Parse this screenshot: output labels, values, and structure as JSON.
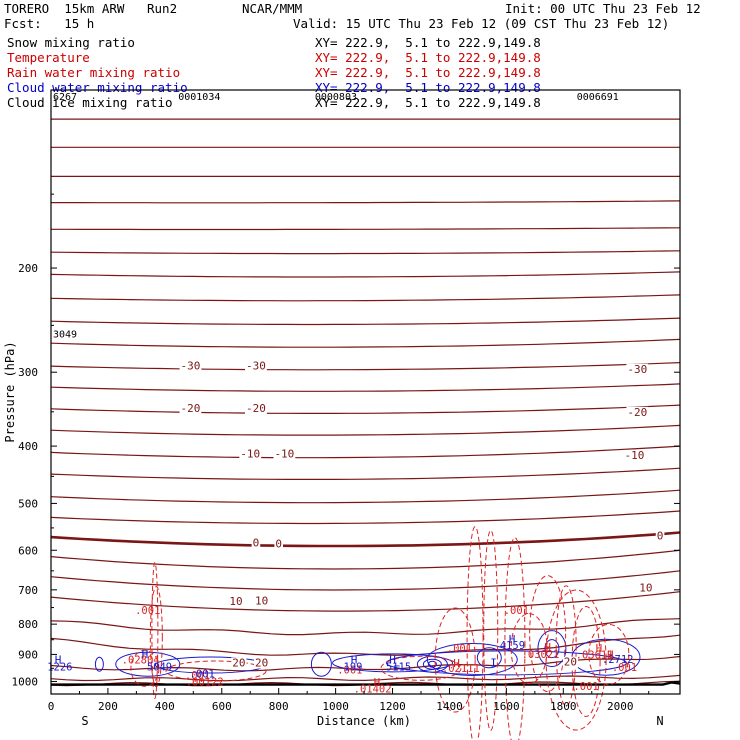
{
  "header": {
    "model": "TORERO  15km ARW   Run2",
    "center": "NCAR/MMM",
    "init": "Init: 00 UTC Thu 23 Feb 12",
    "fcst": "Fcst:   15 h",
    "valid": "Valid: 15 UTC Thu 23 Feb 12 (09 CST Thu 23 Feb 12)"
  },
  "fields": [
    {
      "name": "Snow mixing ratio",
      "xy": "XY= 222.9,  5.1 to 222.9,149.8",
      "color": "#000000"
    },
    {
      "name": "Temperature",
      "xy": "XY= 222.9,  5.1 to 222.9,149.8",
      "color": "#cc0000"
    },
    {
      "name": "Rain water mixing ratio",
      "xy": "XY= 222.9,  5.1 to 222.9,149.8",
      "color": "#cc0000"
    },
    {
      "name": "Cloud water mixing ratio",
      "xy": "XY= 222.9,  5.1 to 222.9,149.8",
      "color": "#0000cc"
    },
    {
      "name": "Cloud ice mixing ratio",
      "xy": "XY= 222.9,  5.1 to 222.9,149.8",
      "color": "#000000"
    }
  ],
  "colors": {
    "temperature": "#7a1616",
    "freezing": "#7a1616",
    "rain": "#dd2222",
    "cloud_water": "#1a1acc",
    "ground": "#000000"
  },
  "chart_data": {
    "type": "cross-section",
    "xlabel": "Distance (km)",
    "ylabel": "Pressure (hPa)",
    "xlim": [
      0,
      2210
    ],
    "ylim": [
      1050,
      100
    ],
    "y_log": true,
    "x_ticks": [
      0,
      200,
      400,
      600,
      800,
      1000,
      1200,
      1400,
      1600,
      1800,
      2000
    ],
    "y_ticks": [
      200,
      300,
      400,
      500,
      600,
      700,
      800,
      900,
      1000
    ],
    "end_labels": {
      "left": "S",
      "right": "N"
    },
    "temperature_lines": [
      {
        "p_left": 112,
        "p_mid": 112,
        "p_right": 112,
        "label": ""
      },
      {
        "p_left": 125,
        "p_mid": 125,
        "p_right": 125,
        "label": ""
      },
      {
        "p_left": 140,
        "p_mid": 140,
        "p_right": 140,
        "label": ""
      },
      {
        "p_left": 155,
        "p_mid": 155,
        "p_right": 154,
        "label": ""
      },
      {
        "p_left": 172,
        "p_mid": 172,
        "p_right": 171,
        "label": ""
      },
      {
        "p_left": 188,
        "p_mid": 189,
        "p_right": 187,
        "label": ""
      },
      {
        "p_left": 205,
        "p_mid": 207,
        "p_right": 203,
        "label": ""
      },
      {
        "p_left": 225,
        "p_mid": 227,
        "p_right": 222,
        "label": ""
      },
      {
        "p_left": 246,
        "p_mid": 249,
        "p_right": 243,
        "label": ""
      },
      {
        "p_left": 268,
        "p_mid": 272,
        "p_right": 264,
        "label": ""
      },
      {
        "p_left": 293,
        "p_mid": 297,
        "p_right": 289,
        "label": "-30"
      },
      {
        "p_left": 318,
        "p_mid": 323,
        "p_right": 314,
        "label": ""
      },
      {
        "p_left": 346,
        "p_mid": 352,
        "p_right": 341,
        "label": "-20"
      },
      {
        "p_left": 376,
        "p_mid": 383,
        "p_right": 369,
        "label": ""
      },
      {
        "p_left": 410,
        "p_mid": 418,
        "p_right": 400,
        "label": "-10"
      },
      {
        "p_left": 446,
        "p_mid": 455,
        "p_right": 436,
        "label": ""
      },
      {
        "p_left": 487,
        "p_mid": 498,
        "p_right": 475,
        "label": ""
      },
      {
        "p_left": 528,
        "p_mid": 540,
        "p_right": 515,
        "label": ""
      },
      {
        "p_left": 570,
        "p_mid": 590,
        "p_right": 560,
        "label": "0",
        "freezing": true
      },
      {
        "p_left": 615,
        "p_mid": 645,
        "p_right": 600,
        "label": ""
      },
      {
        "p_left": 665,
        "p_mid": 700,
        "p_right": 650,
        "label": "10"
      },
      {
        "p_left": 720,
        "p_mid": 760,
        "p_right": 705,
        "label": "10"
      },
      {
        "p_left": 790,
        "p_mid": 830,
        "p_right": 780,
        "label": ""
      },
      {
        "p_left": 850,
        "p_mid": 900,
        "p_right": 830,
        "label": "20"
      },
      {
        "p_left": 945,
        "p_mid": 950,
        "p_right": 905,
        "label": "20"
      },
      {
        "p_left": 990,
        "p_mid": 990,
        "p_right": 980,
        "label": ""
      },
      {
        "p_left": 1010,
        "p_mid": 1010,
        "p_right": 1005,
        "label": ""
      }
    ],
    "temperature_labels": [
      {
        "x": 490,
        "p": 292,
        "text": "-30"
      },
      {
        "x": 720,
        "p": 292,
        "text": "-30"
      },
      {
        "x": 2060,
        "p": 296,
        "text": "-30"
      },
      {
        "x": 490,
        "p": 345,
        "text": "-20"
      },
      {
        "x": 720,
        "p": 345,
        "text": "-20"
      },
      {
        "x": 2060,
        "p": 350,
        "text": "-20"
      },
      {
        "x": 700,
        "p": 412,
        "text": "-10"
      },
      {
        "x": 820,
        "p": 412,
        "text": "-10"
      },
      {
        "x": 2050,
        "p": 414,
        "text": "-10"
      },
      {
        "x": 720,
        "p": 582,
        "text": "0"
      },
      {
        "x": 800,
        "p": 584,
        "text": "0"
      },
      {
        "x": 2140,
        "p": 567,
        "text": "0"
      },
      {
        "x": 650,
        "p": 731,
        "text": "10"
      },
      {
        "x": 740,
        "p": 730,
        "text": "10"
      },
      {
        "x": 2090,
        "p": 694,
        "text": "10"
      },
      {
        "x": 660,
        "p": 929,
        "text": "20"
      },
      {
        "x": 740,
        "p": 929,
        "text": "20"
      },
      {
        "x": 1825,
        "p": 926,
        "text": "20"
      }
    ],
    "top_labels": [
      {
        "x": 0,
        "text": "6267"
      },
      {
        "x": 440,
        "text": "0001034"
      },
      {
        "x": 920,
        "text": "0000803"
      },
      {
        "x": 1840,
        "text": "0006691"
      }
    ],
    "snow_label": {
      "x": 0,
      "p": 258,
      "text": "3049"
    },
    "rain_labels": [
      {
        "x": 340,
        "p": 757,
        "text": ".001"
      },
      {
        "x": 315,
        "p": 918,
        "text": ".02804"
      },
      {
        "x": 515,
        "p": 975,
        "text": ".001"
      },
      {
        "x": 540,
        "p": 1000,
        "text": ".00122"
      },
      {
        "x": 1050,
        "p": 955,
        "text": ".001"
      },
      {
        "x": 1130,
        "p": 1027,
        "text": ".01402"
      },
      {
        "x": 1435,
        "p": 878,
        "text": ".001"
      },
      {
        "x": 1440,
        "p": 948,
        "text": ".02111"
      },
      {
        "x": 1635,
        "p": 757,
        "text": ".001"
      },
      {
        "x": 1720,
        "p": 899,
        "text": ".03021"
      },
      {
        "x": 1910,
        "p": 900,
        "text": ".03611"
      },
      {
        "x": 2015,
        "p": 946,
        "text": ".001"
      },
      {
        "x": 1880,
        "p": 1017,
        "text": ".001"
      }
    ],
    "cloud_labels": [
      {
        "x": 10,
        "p": 943,
        "text": "1226"
      },
      {
        "x": 360,
        "p": 944,
        "text": "5049"
      },
      {
        "x": 510,
        "p": 970,
        "text": ".001"
      },
      {
        "x": 1040,
        "p": 943,
        "text": "199"
      },
      {
        "x": 1200,
        "p": 943,
        "text": "5115"
      },
      {
        "x": 1600,
        "p": 868,
        "text": "4159"
      },
      {
        "x": 1970,
        "p": 916,
        "text": ".2712"
      }
    ],
    "extrema_marks": [
      {
        "x": 25,
        "p": 918,
        "text": "H",
        "color": "cloud"
      },
      {
        "x": 330,
        "p": 899,
        "text": "H",
        "color": "cloud"
      },
      {
        "x": 1065,
        "p": 918,
        "text": "H",
        "color": "cloud"
      },
      {
        "x": 1200,
        "p": 918,
        "text": "H",
        "color": "cloud"
      },
      {
        "x": 1145,
        "p": 1002,
        "text": "H",
        "color": "rain"
      },
      {
        "x": 1425,
        "p": 930,
        "text": "H",
        "color": "rain"
      },
      {
        "x": 1555,
        "p": 928,
        "text": "I",
        "color": "cloud"
      },
      {
        "x": 1620,
        "p": 848,
        "text": "H",
        "color": "cloud"
      },
      {
        "x": 1745,
        "p": 875,
        "text": "H",
        "color": "rain"
      },
      {
        "x": 1925,
        "p": 877,
        "text": "H",
        "color": "rain"
      },
      {
        "x": 1965,
        "p": 900,
        "text": "H",
        "color": "rain"
      },
      {
        "x": 1215,
        "p": 943,
        "text": "=",
        "color": "cloud"
      }
    ]
  }
}
